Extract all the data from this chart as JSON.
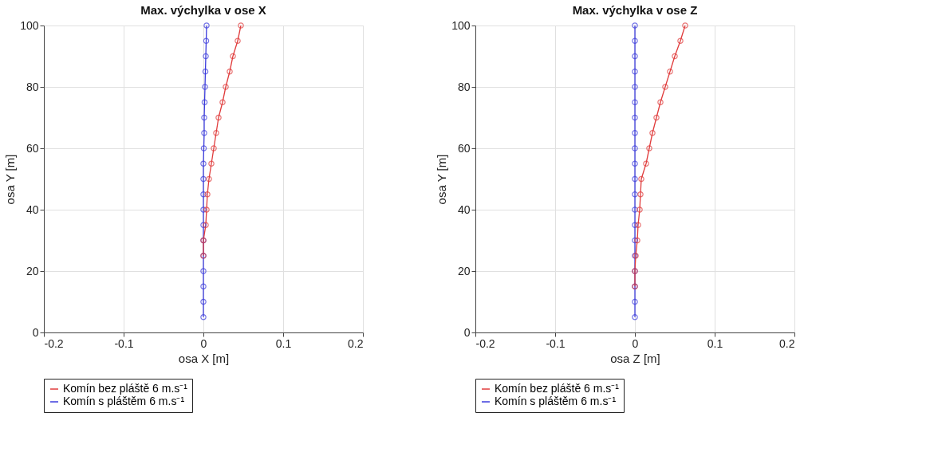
{
  "chart_data": [
    {
      "type": "line",
      "title": "Max. výchylka v ose X",
      "xlabel": "osa X [m]",
      "ylabel": "osa Y [m]",
      "xlim": [
        -0.2,
        0.2
      ],
      "xticks": [
        -0.2,
        -0.1,
        0,
        0.1,
        0.2
      ],
      "ylim": [
        0,
        100
      ],
      "yticks": [
        0,
        20,
        40,
        60,
        80,
        100
      ],
      "grid": true,
      "legend": "bottom",
      "marker": "circle",
      "line_style": "solid",
      "series": [
        {
          "name": "Komín bez pláště 6 m.s⁻¹",
          "color": "#e03c3c",
          "x": [
            0.0,
            0.0,
            0.003,
            0.004,
            0.005,
            0.007,
            0.01,
            0.013,
            0.016,
            0.019,
            0.024,
            0.028,
            0.033,
            0.037,
            0.043,
            0.047
          ],
          "values": [
            25,
            30,
            35,
            40,
            45,
            50,
            55,
            60,
            65,
            70,
            75,
            80,
            85,
            90,
            95,
            100
          ]
        },
        {
          "name": "Komín s pláštěm 6 m.s⁻¹",
          "color": "#3c3cdc",
          "x": [
            0,
            0,
            0,
            0,
            0,
            0,
            0,
            0,
            0,
            0,
            0,
            0.0005,
            0.001,
            0.001,
            0.0015,
            0.002,
            0.0025,
            0.003,
            0.0035,
            0.004
          ],
          "values": [
            5,
            10,
            15,
            20,
            25,
            30,
            35,
            40,
            45,
            50,
            55,
            60,
            65,
            70,
            75,
            80,
            85,
            90,
            95,
            100
          ]
        }
      ]
    },
    {
      "type": "line",
      "title": "Max. výchylka v ose Z",
      "xlabel": "osa Z [m]",
      "ylabel": "osa Y [m]",
      "xlim": [
        -0.2,
        0.2
      ],
      "xticks": [
        -0.2,
        -0.1,
        0,
        0.1,
        0.2
      ],
      "ylim": [
        0,
        100
      ],
      "yticks": [
        0,
        20,
        40,
        60,
        80,
        100
      ],
      "grid": true,
      "legend": "bottom",
      "marker": "circle",
      "line_style": "solid",
      "series": [
        {
          "name": "Komín bez pláště 6 m.s⁻¹",
          "color": "#e03c3c",
          "x": [
            0.0,
            0.0,
            0.001,
            0.003,
            0.004,
            0.006,
            0.007,
            0.008,
            0.014,
            0.018,
            0.022,
            0.027,
            0.032,
            0.038,
            0.044,
            0.05,
            0.057,
            0.063
          ],
          "values": [
            15,
            20,
            25,
            30,
            35,
            40,
            45,
            50,
            55,
            60,
            65,
            70,
            75,
            80,
            85,
            90,
            95,
            100
          ]
        },
        {
          "name": "Komín s pláštěm 6 m.s⁻¹",
          "color": "#3c3cdc",
          "x": [
            0,
            0,
            0,
            0,
            0,
            0,
            0,
            0,
            0,
            0,
            0,
            0,
            0,
            0,
            0,
            0,
            0,
            0,
            0,
            0
          ],
          "values": [
            5,
            10,
            15,
            20,
            25,
            30,
            35,
            40,
            45,
            50,
            55,
            60,
            65,
            70,
            75,
            80,
            85,
            90,
            95,
            100
          ]
        }
      ]
    }
  ]
}
